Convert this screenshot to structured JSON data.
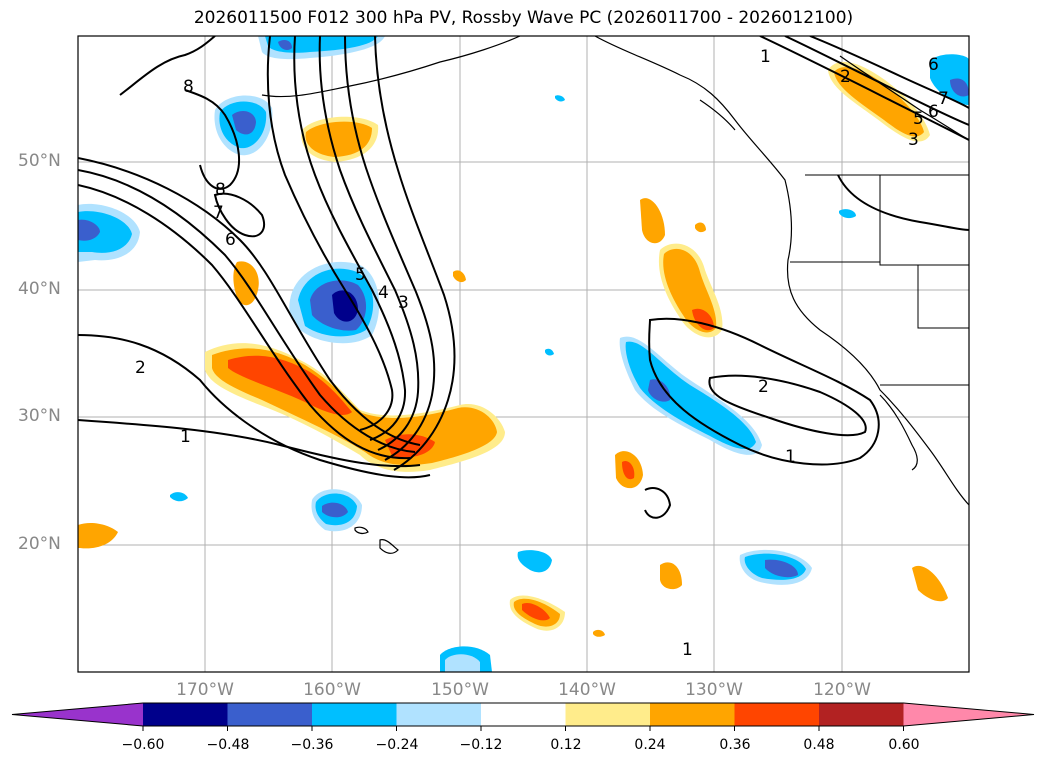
{
  "title": "2026011500 F012 300 hPa PV, Rossby Wave PC (2026011700 - 2026012100)",
  "map": {
    "lat_labels": [
      "50°N",
      "40°N",
      "30°N",
      "20°N"
    ],
    "lon_labels": [
      "170°W",
      "160°W",
      "150°W",
      "140°W",
      "130°W",
      "120°W"
    ],
    "contour_labels": [
      "1",
      "2",
      "3",
      "4",
      "5",
      "6",
      "7",
      "8",
      "1",
      "2",
      "1",
      "2",
      "3",
      "5",
      "6",
      "7",
      "6",
      "8",
      "1"
    ]
  },
  "colorbar": {
    "ticks": [
      "−0.60",
      "−0.48",
      "−0.36",
      "−0.24",
      "−0.12",
      "0.12",
      "0.24",
      "0.36",
      "0.48",
      "0.60"
    ],
    "colors": {
      "under": "#9933cc",
      "n060": "#00008b",
      "n048": "#3a5fcd",
      "n036": "#00bfff",
      "n024": "#b0e2ff",
      "zero": "#ffffff",
      "p012": "#ffec8b",
      "p024": "#ffa500",
      "p036": "#ff4500",
      "p048": "#b22222",
      "over": "#ff88aa"
    }
  }
}
